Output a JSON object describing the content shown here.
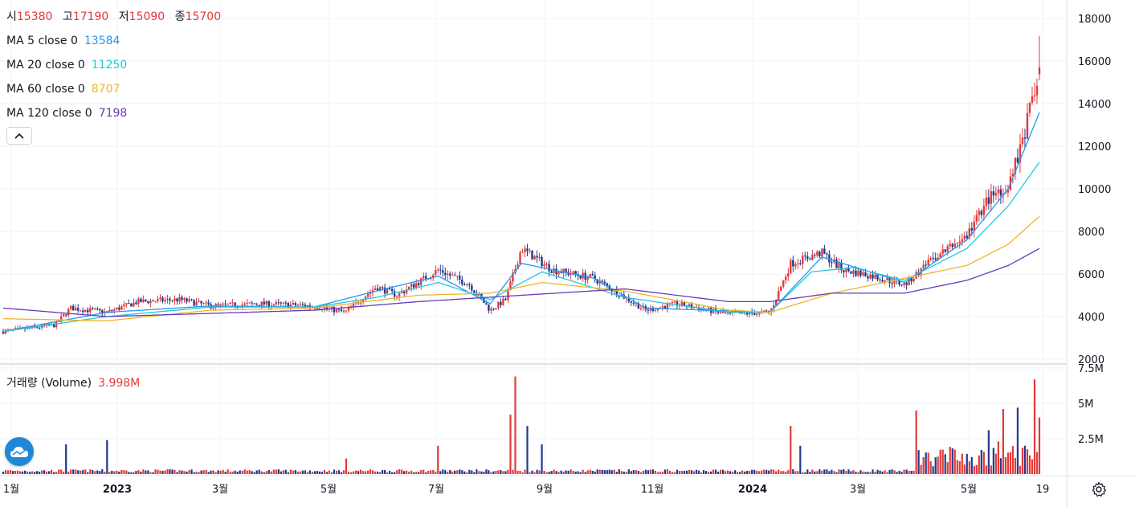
{
  "ohlc_legend": {
    "open_label": "시",
    "open": "15380",
    "high_label": "고",
    "high": "17190",
    "low_label": "저",
    "low": "15090",
    "close_label": "종",
    "close": "15700"
  },
  "ma_legend": [
    {
      "label": "MA 5 close 0",
      "value": "13584",
      "color": "#2196f3"
    },
    {
      "label": "MA 20 close 0",
      "value": "11250",
      "color": "#26c6da"
    },
    {
      "label": "MA 60 close 0",
      "value": "8707",
      "color": "#f0b429"
    },
    {
      "label": "MA 120 close 0",
      "value": "7198",
      "color": "#673ab7"
    }
  ],
  "volume_legend": {
    "label": "거래량 (Volume)",
    "value": "3.998M"
  },
  "icons": {
    "collapse": "chevron-up-icon",
    "logo": "cloud-logo-icon",
    "settings": "gear-icon"
  },
  "colors": {
    "up": "#e23a3a",
    "down": "#1f3a8f",
    "grid": "#f0f3fa"
  },
  "chart_data": {
    "type": "candlestick",
    "price_axis": {
      "ticks": [
        "18000",
        "16000",
        "14000",
        "12000",
        "10000",
        "8000",
        "6000",
        "4000",
        "2000"
      ],
      "range": [
        2000,
        18000
      ]
    },
    "volume_axis": {
      "ticks": [
        "7.5M",
        "5M",
        "2.5M"
      ],
      "range": [
        0,
        7500000
      ]
    },
    "time_axis": {
      "ticks": [
        "1월",
        "2023",
        "3월",
        "5월",
        "7월",
        "9월",
        "11월",
        "2024",
        "3월",
        "5월",
        "19"
      ]
    },
    "price_path": [
      {
        "t": 0,
        "p": 3300
      },
      {
        "t": 0.05,
        "p": 3600
      },
      {
        "t": 0.065,
        "p": 4400
      },
      {
        "t": 0.1,
        "p": 4200
      },
      {
        "t": 0.13,
        "p": 4700
      },
      {
        "t": 0.17,
        "p": 4800
      },
      {
        "t": 0.2,
        "p": 4500
      },
      {
        "t": 0.25,
        "p": 4600
      },
      {
        "t": 0.3,
        "p": 4500
      },
      {
        "t": 0.33,
        "p": 4200
      },
      {
        "t": 0.36,
        "p": 5400
      },
      {
        "t": 0.38,
        "p": 5000
      },
      {
        "t": 0.42,
        "p": 6200
      },
      {
        "t": 0.45,
        "p": 5500
      },
      {
        "t": 0.47,
        "p": 4300
      },
      {
        "t": 0.485,
        "p": 4800
      },
      {
        "t": 0.5,
        "p": 7200
      },
      {
        "t": 0.53,
        "p": 6200
      },
      {
        "t": 0.57,
        "p": 5800
      },
      {
        "t": 0.62,
        "p": 4300
      },
      {
        "t": 0.65,
        "p": 4600
      },
      {
        "t": 0.7,
        "p": 4100
      },
      {
        "t": 0.74,
        "p": 4200
      },
      {
        "t": 0.76,
        "p": 6500
      },
      {
        "t": 0.79,
        "p": 7000
      },
      {
        "t": 0.81,
        "p": 6200
      },
      {
        "t": 0.84,
        "p": 5900
      },
      {
        "t": 0.87,
        "p": 5500
      },
      {
        "t": 0.9,
        "p": 6800
      },
      {
        "t": 0.93,
        "p": 7800
      },
      {
        "t": 0.95,
        "p": 9500
      },
      {
        "t": 0.97,
        "p": 10200
      },
      {
        "t": 0.985,
        "p": 12500
      },
      {
        "t": 1.0,
        "p": 15700
      }
    ],
    "ma_paths": {
      "MA 5": [
        {
          "t": 0,
          "p": 3300
        },
        {
          "t": 0.1,
          "p": 4200
        },
        {
          "t": 0.2,
          "p": 4500
        },
        {
          "t": 0.3,
          "p": 4450
        },
        {
          "t": 0.36,
          "p": 5200
        },
        {
          "t": 0.42,
          "p": 5900
        },
        {
          "t": 0.47,
          "p": 4600
        },
        {
          "t": 0.5,
          "p": 6500
        },
        {
          "t": 0.57,
          "p": 5800
        },
        {
          "t": 0.62,
          "p": 4400
        },
        {
          "t": 0.74,
          "p": 4200
        },
        {
          "t": 0.79,
          "p": 6800
        },
        {
          "t": 0.87,
          "p": 5600
        },
        {
          "t": 0.93,
          "p": 7600
        },
        {
          "t": 0.97,
          "p": 10000
        },
        {
          "t": 1.0,
          "p": 13584
        }
      ],
      "MA 20": [
        {
          "t": 0,
          "p": 3300
        },
        {
          "t": 0.1,
          "p": 4000
        },
        {
          "t": 0.2,
          "p": 4450
        },
        {
          "t": 0.3,
          "p": 4450
        },
        {
          "t": 0.36,
          "p": 4900
        },
        {
          "t": 0.42,
          "p": 5600
        },
        {
          "t": 0.47,
          "p": 4800
        },
        {
          "t": 0.52,
          "p": 6100
        },
        {
          "t": 0.6,
          "p": 4900
        },
        {
          "t": 0.7,
          "p": 4200
        },
        {
          "t": 0.74,
          "p": 4200
        },
        {
          "t": 0.78,
          "p": 6100
        },
        {
          "t": 0.82,
          "p": 6300
        },
        {
          "t": 0.87,
          "p": 5700
        },
        {
          "t": 0.93,
          "p": 7200
        },
        {
          "t": 0.97,
          "p": 9200
        },
        {
          "t": 1.0,
          "p": 11250
        }
      ],
      "MA 60": [
        {
          "t": 0,
          "p": 3900
        },
        {
          "t": 0.1,
          "p": 3800
        },
        {
          "t": 0.2,
          "p": 4300
        },
        {
          "t": 0.3,
          "p": 4400
        },
        {
          "t": 0.4,
          "p": 5000
        },
        {
          "t": 0.47,
          "p": 5100
        },
        {
          "t": 0.52,
          "p": 5600
        },
        {
          "t": 0.6,
          "p": 5200
        },
        {
          "t": 0.7,
          "p": 4300
        },
        {
          "t": 0.74,
          "p": 4200
        },
        {
          "t": 0.8,
          "p": 5100
        },
        {
          "t": 0.87,
          "p": 5800
        },
        {
          "t": 0.93,
          "p": 6400
        },
        {
          "t": 0.97,
          "p": 7400
        },
        {
          "t": 1.0,
          "p": 8707
        }
      ],
      "MA 120": [
        {
          "t": 0,
          "p": 4400
        },
        {
          "t": 0.1,
          "p": 4000
        },
        {
          "t": 0.2,
          "p": 4150
        },
        {
          "t": 0.3,
          "p": 4300
        },
        {
          "t": 0.4,
          "p": 4700
        },
        {
          "t": 0.5,
          "p": 5000
        },
        {
          "t": 0.6,
          "p": 5300
        },
        {
          "t": 0.7,
          "p": 4700
        },
        {
          "t": 0.74,
          "p": 4700
        },
        {
          "t": 0.8,
          "p": 5100
        },
        {
          "t": 0.87,
          "p": 5100
        },
        {
          "t": 0.93,
          "p": 5700
        },
        {
          "t": 0.97,
          "p": 6400
        },
        {
          "t": 1.0,
          "p": 7198
        }
      ]
    },
    "volume_spikes": [
      {
        "t": 0.06,
        "v": 2100000
      },
      {
        "t": 0.1,
        "v": 2400000
      },
      {
        "t": 0.33,
        "v": 1100000
      },
      {
        "t": 0.42,
        "v": 2000000
      },
      {
        "t": 0.49,
        "v": 4200000
      },
      {
        "t": 0.495,
        "v": 6900000
      },
      {
        "t": 0.505,
        "v": 3400000
      },
      {
        "t": 0.52,
        "v": 2100000
      },
      {
        "t": 0.76,
        "v": 3400000
      },
      {
        "t": 0.77,
        "v": 2000000
      },
      {
        "t": 0.88,
        "v": 4500000
      },
      {
        "t": 0.95,
        "v": 3100000
      },
      {
        "t": 0.96,
        "v": 2300000
      },
      {
        "t": 0.965,
        "v": 4600000
      },
      {
        "t": 0.98,
        "v": 4700000
      },
      {
        "t": 0.985,
        "v": 2000000
      },
      {
        "t": 0.995,
        "v": 6700000
      },
      {
        "t": 1.0,
        "v": 4000000
      }
    ]
  }
}
